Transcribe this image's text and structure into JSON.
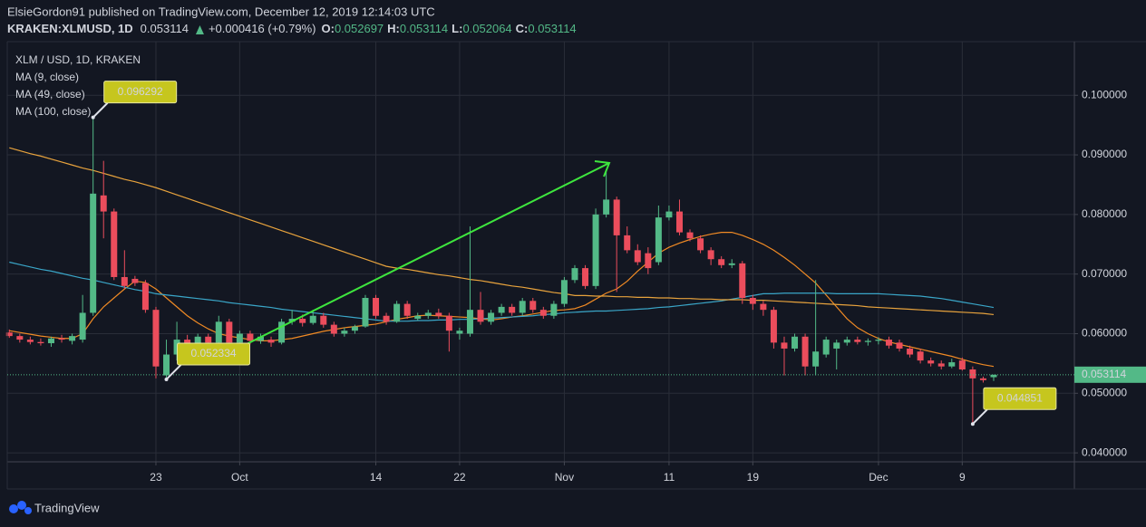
{
  "header": {
    "author_line": "ElsieGordon91 published on TradingView.com, December 12, 2019 12:14:03 UTC",
    "symbol": "KRAKEN:XLMUSD, 1D",
    "change": "+0.000416 (+0.79%)",
    "ohlc_labels": [
      "O:",
      "H:",
      "L:",
      "C:"
    ]
  },
  "footer": {
    "brand": "TradingView"
  },
  "chart_data": {
    "type": "candlestick",
    "title": "XLM / USD, 1D, KRAKEN",
    "up_color": "#53b987",
    "down_color": "#eb4d5c",
    "grid": true,
    "ylim": [
      0.0385,
      0.109
    ],
    "yticks": [
      {
        "value": 0.04,
        "label": "0.040000"
      },
      {
        "value": 0.05,
        "label": "0.050000"
      },
      {
        "value": 0.06,
        "label": "0.060000"
      },
      {
        "value": 0.07,
        "label": "0.070000"
      },
      {
        "value": 0.08,
        "label": "0.080000"
      },
      {
        "value": 0.09,
        "label": "0.090000"
      },
      {
        "value": 0.1,
        "label": "0.100000"
      }
    ],
    "categories": [
      null,
      null,
      null,
      null,
      null,
      null,
      null,
      null,
      null,
      null,
      null,
      null,
      null,
      null,
      "23",
      null,
      null,
      null,
      null,
      null,
      null,
      null,
      "Oct",
      null,
      null,
      null,
      null,
      null,
      null,
      null,
      null,
      null,
      null,
      null,
      null,
      "14",
      null,
      null,
      null,
      null,
      null,
      null,
      null,
      "22",
      null,
      null,
      null,
      null,
      null,
      null,
      null,
      null,
      null,
      "Nov",
      null,
      null,
      null,
      null,
      null,
      null,
      null,
      null,
      null,
      "11",
      null,
      null,
      null,
      null,
      null,
      null,
      null,
      "19",
      null,
      null,
      null,
      null,
      null,
      null,
      null,
      null,
      null,
      null,
      null,
      "Dec",
      null,
      null,
      null,
      null,
      null,
      null,
      null,
      "9",
      null,
      null,
      null
    ],
    "open": [
      0.0602,
      0.0596,
      0.059,
      0.0586,
      0.0584,
      0.0592,
      0.0588,
      0.059,
      0.0635,
      0.0832,
      0.0805,
      0.0695,
      0.0692,
      0.0685,
      0.064,
      0.053,
      0.0565,
      0.059,
      0.058,
      0.0595,
      0.0585,
      0.062,
      0.0585,
      0.06,
      0.0588,
      0.059,
      0.0585,
      0.062,
      0.0625,
      0.0618,
      0.063,
      0.0615,
      0.06,
      0.0605,
      0.0612,
      0.066,
      0.063,
      0.062,
      0.065,
      0.0625,
      0.063,
      0.0635,
      0.063,
      0.06,
      0.06,
      0.064,
      0.062,
      0.0635,
      0.0645,
      0.0635,
      0.0655,
      0.064,
      0.063,
      0.065,
      0.069,
      0.071,
      0.068,
      0.08,
      0.0825,
      0.0765,
      0.074,
      0.0735,
      0.072,
      0.0795,
      0.0805,
      0.077,
      0.076,
      0.074,
      0.0725,
      0.0715,
      0.0718,
      0.066,
      0.065,
      0.064,
      0.0585,
      0.0575,
      0.0595,
      0.0545,
      0.0565,
      0.0575,
      0.0585,
      0.059,
      0.0586,
      0.0588,
      0.059,
      0.0585,
      0.0575,
      0.057,
      0.0555,
      0.055,
      0.0545,
      0.0555,
      0.054,
      0.0525,
      0.052697
    ],
    "high": [
      0.0607,
      0.06,
      0.0595,
      0.0592,
      0.0595,
      0.0598,
      0.06,
      0.0665,
      0.096292,
      0.089,
      0.081,
      0.074,
      0.0697,
      0.069,
      0.0645,
      0.059,
      0.062,
      0.0598,
      0.06,
      0.06,
      0.063,
      0.0625,
      0.0605,
      0.0605,
      0.06,
      0.0595,
      0.0625,
      0.064,
      0.0632,
      0.064,
      0.0635,
      0.062,
      0.061,
      0.0615,
      0.0665,
      0.0665,
      0.0635,
      0.0655,
      0.0655,
      0.0635,
      0.064,
      0.0642,
      0.0635,
      0.061,
      0.078,
      0.067,
      0.064,
      0.065,
      0.065,
      0.066,
      0.066,
      0.0645,
      0.0655,
      0.0695,
      0.0715,
      0.0715,
      0.081,
      0.0875,
      0.083,
      0.078,
      0.075,
      0.0745,
      0.0815,
      0.0815,
      0.0825,
      0.0775,
      0.0765,
      0.0745,
      0.073,
      0.0725,
      0.0722,
      0.0665,
      0.0655,
      0.0645,
      0.0595,
      0.06,
      0.06,
      0.069,
      0.0595,
      0.059,
      0.0595,
      0.0595,
      0.0592,
      0.0594,
      0.0595,
      0.059,
      0.058,
      0.0575,
      0.056,
      0.0555,
      0.0558,
      0.056,
      0.0545,
      0.0528,
      0.053114
    ],
    "low": [
      0.0593,
      0.0585,
      0.0582,
      0.058,
      0.0578,
      0.0585,
      0.0582,
      0.0585,
      0.063,
      0.076,
      0.069,
      0.0675,
      0.068,
      0.0635,
      0.0525,
      0.052334,
      0.0555,
      0.0575,
      0.0575,
      0.058,
      0.0582,
      0.058,
      0.058,
      0.0582,
      0.0583,
      0.0578,
      0.0582,
      0.0615,
      0.0612,
      0.0615,
      0.061,
      0.0595,
      0.0595,
      0.06,
      0.061,
      0.0625,
      0.0615,
      0.0618,
      0.0625,
      0.0622,
      0.0625,
      0.0625,
      0.057,
      0.059,
      0.0595,
      0.0615,
      0.0615,
      0.063,
      0.063,
      0.063,
      0.0635,
      0.0625,
      0.0625,
      0.0645,
      0.0685,
      0.0675,
      0.0675,
      0.0795,
      0.067,
      0.0735,
      0.0715,
      0.07,
      0.0715,
      0.079,
      0.0765,
      0.0755,
      0.0735,
      0.0715,
      0.071,
      0.071,
      0.065,
      0.064,
      0.063,
      0.0575,
      0.053,
      0.057,
      0.053,
      0.053,
      0.056,
      0.054,
      0.058,
      0.0582,
      0.058,
      0.0582,
      0.0575,
      0.057,
      0.056,
      0.055,
      0.0545,
      0.054,
      0.0542,
      0.0538,
      0.044851,
      0.0518,
      0.052064
    ],
    "close": [
      0.0596,
      0.059,
      0.0586,
      0.0584,
      0.0592,
      0.059,
      0.0596,
      0.0635,
      0.0835,
      0.0805,
      0.0695,
      0.068,
      0.0685,
      0.064,
      0.0545,
      0.0565,
      0.059,
      0.058,
      0.0595,
      0.0585,
      0.062,
      0.0585,
      0.06,
      0.0588,
      0.0595,
      0.0585,
      0.062,
      0.0625,
      0.0618,
      0.063,
      0.0615,
      0.06,
      0.0605,
      0.0612,
      0.066,
      0.063,
      0.062,
      0.065,
      0.063,
      0.063,
      0.0635,
      0.063,
      0.0605,
      0.0605,
      0.064,
      0.062,
      0.0635,
      0.0645,
      0.0635,
      0.0655,
      0.064,
      0.063,
      0.065,
      0.069,
      0.071,
      0.068,
      0.08,
      0.0825,
      0.0765,
      0.074,
      0.072,
      0.071,
      0.0795,
      0.0805,
      0.077,
      0.076,
      0.074,
      0.0725,
      0.0715,
      0.0718,
      0.066,
      0.065,
      0.064,
      0.0585,
      0.0575,
      0.0595,
      0.0545,
      0.057,
      0.059,
      0.0585,
      0.059,
      0.0586,
      0.0588,
      0.059,
      0.058,
      0.0575,
      0.0565,
      0.0555,
      0.055,
      0.0545,
      0.0552,
      0.054,
      0.0525,
      0.0522,
      0.053114
    ],
    "series": [
      {
        "name": "MA (9, close)",
        "color": "#f08a24",
        "values": [
          0.0605,
          0.0602,
          0.0599,
          0.0596,
          0.0594,
          0.0592,
          0.0592,
          0.06,
          0.0625,
          0.0645,
          0.066,
          0.0675,
          0.0688,
          0.0686,
          0.0675,
          0.066,
          0.0645,
          0.063,
          0.0618,
          0.0608,
          0.06,
          0.0596,
          0.0593,
          0.059,
          0.0588,
          0.0588,
          0.059,
          0.0592,
          0.0596,
          0.06,
          0.0604,
          0.0607,
          0.061,
          0.0612,
          0.0614,
          0.0616,
          0.062,
          0.0624,
          0.0627,
          0.063,
          0.0631,
          0.063,
          0.0629,
          0.0628,
          0.0627,
          0.0625,
          0.0623,
          0.0625,
          0.0628,
          0.063,
          0.0633,
          0.0636,
          0.0639,
          0.064,
          0.0642,
          0.0648,
          0.0658,
          0.0668,
          0.0675,
          0.0688,
          0.0705,
          0.072,
          0.0735,
          0.0745,
          0.0752,
          0.0758,
          0.0763,
          0.0767,
          0.077,
          0.077,
          0.0765,
          0.0758,
          0.075,
          0.074,
          0.0728,
          0.0715,
          0.07,
          0.0685,
          0.0665,
          0.0645,
          0.0625,
          0.061,
          0.06,
          0.0592,
          0.0586,
          0.0582,
          0.0578,
          0.0574,
          0.057,
          0.0566,
          0.0562,
          0.0557,
          0.0552,
          0.0548,
          0.0545
        ]
      },
      {
        "name": "MA (49, close)",
        "color": "#3aa6c8",
        "values": [
          0.072,
          0.0716,
          0.0712,
          0.0708,
          0.0705,
          0.0701,
          0.0697,
          0.0693,
          0.069,
          0.0686,
          0.0682,
          0.0678,
          0.0674,
          0.0671,
          0.0667,
          0.0665,
          0.0663,
          0.0661,
          0.0659,
          0.0657,
          0.0655,
          0.0652,
          0.065,
          0.0648,
          0.0646,
          0.0644,
          0.0641,
          0.0639,
          0.0637,
          0.0635,
          0.0633,
          0.0631,
          0.0629,
          0.0627,
          0.0625,
          0.0623,
          0.0621,
          0.0621,
          0.0621,
          0.0622,
          0.0622,
          0.0623,
          0.0623,
          0.0624,
          0.0624,
          0.0625,
          0.0626,
          0.0627,
          0.0628,
          0.0629,
          0.063,
          0.0632,
          0.0633,
          0.0635,
          0.0636,
          0.0637,
          0.0638,
          0.0638,
          0.0639,
          0.064,
          0.0641,
          0.0642,
          0.0644,
          0.0645,
          0.0647,
          0.0649,
          0.0651,
          0.0653,
          0.0655,
          0.0658,
          0.0661,
          0.0664,
          0.0667,
          0.0667,
          0.0668,
          0.0668,
          0.0668,
          0.0668,
          0.0668,
          0.0667,
          0.0667,
          0.0667,
          0.0667,
          0.0667,
          0.0666,
          0.0665,
          0.0664,
          0.0663,
          0.0661,
          0.0659,
          0.0656,
          0.0653,
          0.065,
          0.0647,
          0.0644
        ]
      },
      {
        "name": "MA (100, close)",
        "color": "#e8a33d",
        "values": [
          0.0912,
          0.0907,
          0.0902,
          0.0898,
          0.0893,
          0.0888,
          0.0883,
          0.0878,
          0.0874,
          0.0869,
          0.0864,
          0.0859,
          0.0855,
          0.085,
          0.0845,
          0.0839,
          0.0833,
          0.0827,
          0.0821,
          0.0815,
          0.0809,
          0.0803,
          0.0797,
          0.0791,
          0.0785,
          0.0779,
          0.0773,
          0.0767,
          0.0761,
          0.0755,
          0.0749,
          0.0743,
          0.0737,
          0.0731,
          0.0725,
          0.0719,
          0.0713,
          0.071,
          0.0708,
          0.0705,
          0.0702,
          0.0699,
          0.0697,
          0.0694,
          0.0691,
          0.0689,
          0.0686,
          0.0683,
          0.068,
          0.0678,
          0.0675,
          0.0672,
          0.0669,
          0.0667,
          0.0664,
          0.0664,
          0.0663,
          0.0663,
          0.0662,
          0.0662,
          0.0661,
          0.0661,
          0.066,
          0.066,
          0.0659,
          0.0659,
          0.0658,
          0.0658,
          0.0657,
          0.0657,
          0.0657,
          0.0656,
          0.0656,
          0.0655,
          0.0654,
          0.0653,
          0.0652,
          0.0651,
          0.065,
          0.0649,
          0.0648,
          0.0647,
          0.0645,
          0.0644,
          0.0643,
          0.0642,
          0.0641,
          0.064,
          0.0639,
          0.0638,
          0.0637,
          0.0636,
          0.0635,
          0.0634,
          0.0632
        ]
      }
    ]
  }
}
